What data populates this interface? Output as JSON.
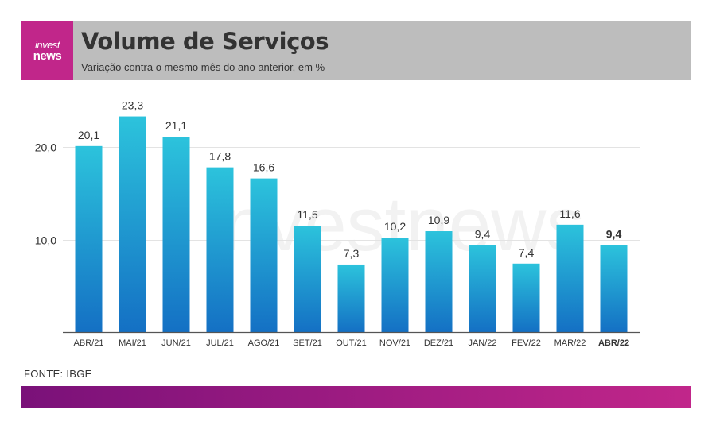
{
  "header": {
    "logo_line1": "invest",
    "logo_line2": "news",
    "title": "Volume de Serviços",
    "subtitle": "Variação contra o mesmo mês do ano anterior, em %"
  },
  "watermark": "investnews",
  "source": "FONTE: IBGE",
  "colors": {
    "brand": "#c1268a",
    "brand_dark": "#7a1179",
    "bar_top": "#2cc3dc",
    "bar_bottom": "#1470c4",
    "header_bg": "#bdbdbd"
  },
  "chart_data": {
    "type": "bar",
    "categories": [
      "ABR/21",
      "MAI/21",
      "JUN/21",
      "JUL/21",
      "AGO/21",
      "SET/21",
      "OUT/21",
      "NOV/21",
      "DEZ/21",
      "JAN/22",
      "FEV/22",
      "MAR/22",
      "ABR/22"
    ],
    "values": [
      20.1,
      23.3,
      21.1,
      17.8,
      16.6,
      11.5,
      7.3,
      10.2,
      10.9,
      9.4,
      7.4,
      11.6,
      9.4
    ],
    "value_labels": [
      "20,1",
      "23,3",
      "21,1",
      "17,8",
      "16,6",
      "11,5",
      "7,3",
      "10,2",
      "10,9",
      "9,4",
      "7,4",
      "11,6",
      "9,4"
    ],
    "highlight_index": 12,
    "yticks": [
      10,
      20
    ],
    "ytick_labels": [
      "10,0",
      "20,0"
    ],
    "ylim": [
      0,
      25
    ],
    "grid": true
  }
}
